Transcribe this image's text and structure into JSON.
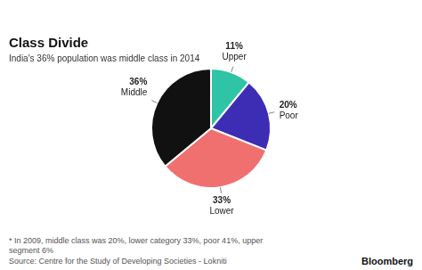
{
  "chart_data": {
    "type": "pie",
    "title": "Class Divide",
    "subtitle": "India's 36% population was middle class in 2014",
    "categories": [
      "Upper",
      "Poor",
      "Lower",
      "Middle"
    ],
    "values": [
      11,
      20,
      33,
      36
    ],
    "value_labels": [
      "11%",
      "20%",
      "33%",
      "36%"
    ],
    "colors": [
      "#2ec4a5",
      "#3d2db5",
      "#f07070",
      "#111111"
    ],
    "data_labels": true,
    "annotations": [
      "* In 2009, middle class was 20%, lower category 33%, poor 41%, upper\nsegment 6%",
      "Source: Centre for the Study of Developing Societies - Lokniti",
      "Bloomberg"
    ]
  }
}
